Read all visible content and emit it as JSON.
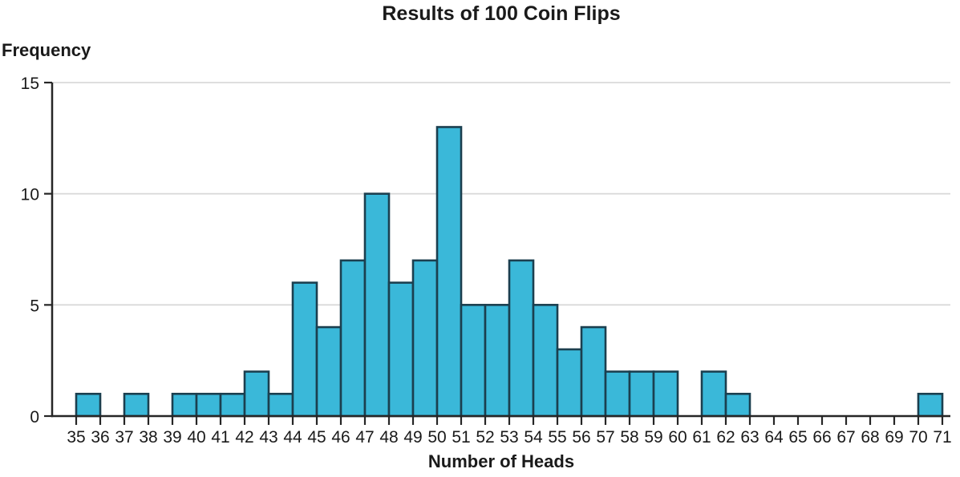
{
  "chart_data": {
    "type": "bar",
    "subtype": "histogram",
    "title": "Results of 100 Coin Flips",
    "xlabel": "Number of Heads",
    "ylabel": "Frequency",
    "bin_width": 1,
    "bin_starts": [
      35,
      36,
      37,
      38,
      39,
      40,
      41,
      42,
      43,
      44,
      45,
      46,
      47,
      48,
      49,
      50,
      51,
      52,
      53,
      54,
      55,
      56,
      57,
      58,
      59,
      60,
      61,
      62,
      63,
      64,
      65,
      66,
      67,
      68,
      69,
      70
    ],
    "frequencies": [
      1,
      0,
      1,
      0,
      1,
      1,
      1,
      2,
      1,
      6,
      4,
      7,
      10,
      6,
      7,
      13,
      5,
      5,
      7,
      5,
      3,
      4,
      2,
      2,
      2,
      0,
      2,
      1,
      0,
      0,
      0,
      0,
      0,
      0,
      0,
      1
    ],
    "x_tick_labels": [
      35,
      36,
      37,
      38,
      39,
      40,
      41,
      42,
      43,
      44,
      45,
      46,
      47,
      48,
      49,
      50,
      51,
      52,
      53,
      54,
      55,
      56,
      57,
      58,
      59,
      60,
      61,
      62,
      63,
      64,
      65,
      66,
      67,
      68,
      69,
      70,
      71
    ],
    "y_ticks": [
      0,
      5,
      10,
      15
    ],
    "ylim": [
      0,
      15
    ],
    "xlim": [
      35,
      71
    ],
    "grid": "horizontal",
    "legend": "none",
    "colors": {
      "bar_fill": "#3ab8d9",
      "bar_border": "#1b3f4f",
      "grid_line": "#d9d9d9",
      "axis_line": "#262626",
      "text": "#1a1a1a"
    }
  }
}
